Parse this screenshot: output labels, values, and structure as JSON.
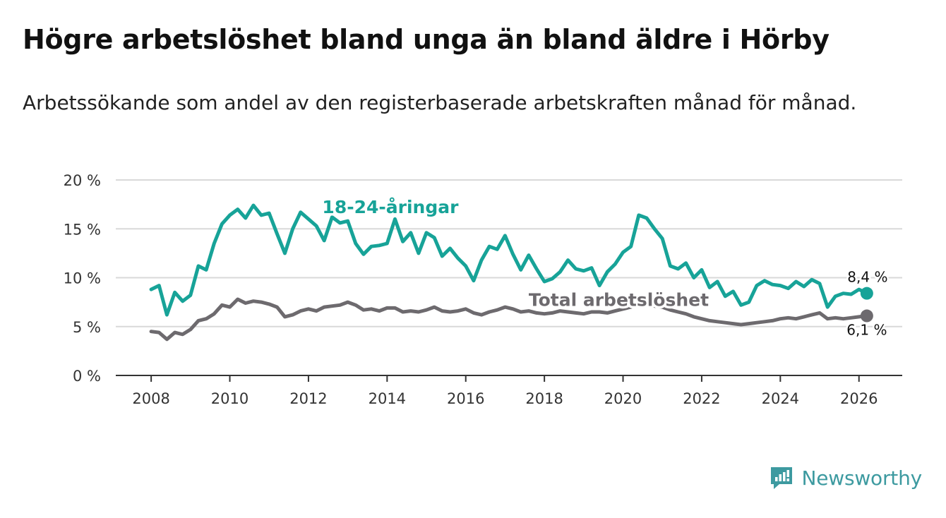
{
  "header": {
    "title": "Högre arbetslöshet bland unga än bland äldre i Hörby",
    "subtitle": "Arbetssökande som andel av den registerbaserade arbetskraften månad för månad."
  },
  "brand": {
    "name": "Newsworthy"
  },
  "colors": {
    "youth": "#17a398",
    "total": "#6d6a6e",
    "grid": "#d9d9d9",
    "axis": "#333333",
    "brand": "#3d9aa0"
  },
  "chart_data": {
    "type": "line",
    "title": "Högre arbetslöshet bland unga än bland äldre i Hörby",
    "xlabel": "",
    "ylabel": "",
    "ylim": [
      0,
      20
    ],
    "xlim": [
      2007.1,
      2027.1
    ],
    "y_ticks": [
      {
        "value": 0,
        "label": "0 %"
      },
      {
        "value": 5,
        "label": "5 %"
      },
      {
        "value": 10,
        "label": "10 %"
      },
      {
        "value": 15,
        "label": "15 %"
      },
      {
        "value": 20,
        "label": "20 %"
      }
    ],
    "x_ticks": [
      {
        "value": 2008,
        "label": "2008"
      },
      {
        "value": 2010,
        "label": "2010"
      },
      {
        "value": 2012,
        "label": "2012"
      },
      {
        "value": 2014,
        "label": "2014"
      },
      {
        "value": 2016,
        "label": "2016"
      },
      {
        "value": 2018,
        "label": "2018"
      },
      {
        "value": 2020,
        "label": "2020"
      },
      {
        "value": 2022,
        "label": "2022"
      },
      {
        "value": 2024,
        "label": "2024"
      },
      {
        "value": 2026,
        "label": "2026"
      }
    ],
    "series": [
      {
        "name": "18-24-åringar",
        "label": "18-24-åringar",
        "end_label": "8,4 %",
        "x": [
          2008.0,
          2008.2,
          2008.4,
          2008.6,
          2008.8,
          2009.0,
          2009.2,
          2009.4,
          2009.6,
          2009.8,
          2010.0,
          2010.2,
          2010.4,
          2010.6,
          2010.8,
          2011.0,
          2011.2,
          2011.4,
          2011.6,
          2011.8,
          2012.0,
          2012.2,
          2012.4,
          2012.6,
          2012.8,
          2013.0,
          2013.2,
          2013.4,
          2013.6,
          2013.8,
          2014.0,
          2014.2,
          2014.4,
          2014.6,
          2014.8,
          2015.0,
          2015.2,
          2015.4,
          2015.6,
          2015.8,
          2016.0,
          2016.2,
          2016.4,
          2016.6,
          2016.8,
          2017.0,
          2017.2,
          2017.4,
          2017.6,
          2017.8,
          2018.0,
          2018.2,
          2018.4,
          2018.6,
          2018.8,
          2019.0,
          2019.2,
          2019.4,
          2019.6,
          2019.8,
          2020.0,
          2020.2,
          2020.4,
          2020.6,
          2020.8,
          2021.0,
          2021.2,
          2021.4,
          2021.6,
          2021.8,
          2022.0,
          2022.2,
          2022.4,
          2022.6,
          2022.8,
          2023.0,
          2023.2,
          2023.4,
          2023.6,
          2023.8,
          2024.0,
          2024.2,
          2024.4,
          2024.6,
          2024.8,
          2025.0,
          2025.2,
          2025.4,
          2025.6,
          2025.8,
          2026.0,
          2026.2
        ],
        "values": [
          8.8,
          9.2,
          6.2,
          8.5,
          7.6,
          8.2,
          11.2,
          10.8,
          13.5,
          15.5,
          16.4,
          17.0,
          16.1,
          17.4,
          16.4,
          16.6,
          14.5,
          12.5,
          15.0,
          16.7,
          16.0,
          15.3,
          13.8,
          16.2,
          15.6,
          15.8,
          13.5,
          12.4,
          13.2,
          13.3,
          13.5,
          16.0,
          13.7,
          14.6,
          12.5,
          14.6,
          14.1,
          12.2,
          13.0,
          12.0,
          11.2,
          9.7,
          11.8,
          13.2,
          12.9,
          14.3,
          12.4,
          10.8,
          12.3,
          10.9,
          9.6,
          9.9,
          10.6,
          11.8,
          10.9,
          10.7,
          11.0,
          9.2,
          10.6,
          11.4,
          12.6,
          13.2,
          16.4,
          16.1,
          15.0,
          14.0,
          11.2,
          10.9,
          11.5,
          10.0,
          10.8,
          9.0,
          9.6,
          8.1,
          8.6,
          7.2,
          7.5,
          9.2,
          9.7,
          9.3,
          9.2,
          8.9,
          9.6,
          9.1,
          9.8,
          9.4,
          7.0,
          8.1,
          8.4,
          8.3,
          8.8,
          8.4
        ]
      },
      {
        "name": "Total arbetslöshet",
        "label": "Total arbetslöshet",
        "end_label": "6,1 %",
        "x": [
          2008.0,
          2008.2,
          2008.4,
          2008.6,
          2008.8,
          2009.0,
          2009.2,
          2009.4,
          2009.6,
          2009.8,
          2010.0,
          2010.2,
          2010.4,
          2010.6,
          2010.8,
          2011.0,
          2011.2,
          2011.4,
          2011.6,
          2011.8,
          2012.0,
          2012.2,
          2012.4,
          2012.6,
          2012.8,
          2013.0,
          2013.2,
          2013.4,
          2013.6,
          2013.8,
          2014.0,
          2014.2,
          2014.4,
          2014.6,
          2014.8,
          2015.0,
          2015.2,
          2015.4,
          2015.6,
          2015.8,
          2016.0,
          2016.2,
          2016.4,
          2016.6,
          2016.8,
          2017.0,
          2017.2,
          2017.4,
          2017.6,
          2017.8,
          2018.0,
          2018.2,
          2018.4,
          2018.6,
          2018.8,
          2019.0,
          2019.2,
          2019.4,
          2019.6,
          2019.8,
          2020.0,
          2020.2,
          2020.4,
          2020.6,
          2020.8,
          2021.0,
          2021.2,
          2021.4,
          2021.6,
          2021.8,
          2022.0,
          2022.2,
          2022.4,
          2022.6,
          2022.8,
          2023.0,
          2023.2,
          2023.4,
          2023.6,
          2023.8,
          2024.0,
          2024.2,
          2024.4,
          2024.6,
          2024.8,
          2025.0,
          2025.2,
          2025.4,
          2025.6,
          2025.8,
          2026.0,
          2026.2
        ],
        "values": [
          4.5,
          4.4,
          3.7,
          4.4,
          4.2,
          4.7,
          5.6,
          5.8,
          6.3,
          7.2,
          7.0,
          7.8,
          7.4,
          7.6,
          7.5,
          7.3,
          7.0,
          6.0,
          6.2,
          6.6,
          6.8,
          6.6,
          7.0,
          7.1,
          7.2,
          7.5,
          7.2,
          6.7,
          6.8,
          6.6,
          6.9,
          6.9,
          6.5,
          6.6,
          6.5,
          6.7,
          7.0,
          6.6,
          6.5,
          6.6,
          6.8,
          6.4,
          6.2,
          6.5,
          6.7,
          7.0,
          6.8,
          6.5,
          6.6,
          6.4,
          6.3,
          6.4,
          6.6,
          6.5,
          6.4,
          6.3,
          6.5,
          6.5,
          6.4,
          6.6,
          6.8,
          7.0,
          7.4,
          7.2,
          7.1,
          7.0,
          6.7,
          6.5,
          6.3,
          6.0,
          5.8,
          5.6,
          5.5,
          5.4,
          5.3,
          5.2,
          5.3,
          5.4,
          5.5,
          5.6,
          5.8,
          5.9,
          5.8,
          6.0,
          6.2,
          6.4,
          5.8,
          5.9,
          5.8,
          5.9,
          6.0,
          6.1
        ]
      }
    ]
  }
}
